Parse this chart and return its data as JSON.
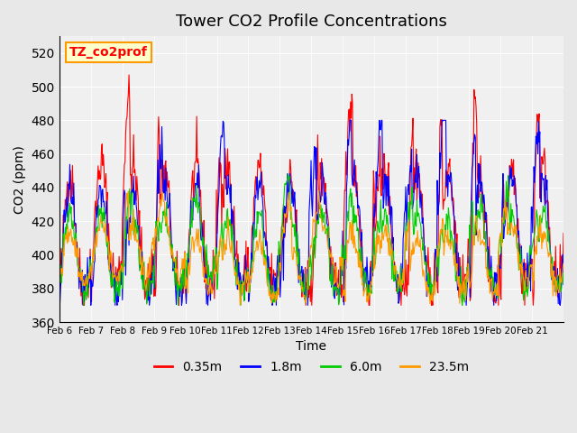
{
  "title": "Tower CO2 Profile Concentrations",
  "xlabel": "Time",
  "ylabel": "CO2 (ppm)",
  "ylim": [
    360,
    530
  ],
  "yticks": [
    360,
    380,
    400,
    420,
    440,
    460,
    480,
    500,
    520
  ],
  "xtick_labels": [
    "Feb 6",
    "Feb 7",
    "Feb 8",
    "Feb 9",
    "Feb 10",
    "Feb 11",
    "Feb 12",
    "Feb 13",
    "Feb 14",
    "Feb 15",
    "Feb 16",
    "Feb 17",
    "Feb 18",
    "Feb 19",
    "Feb 20",
    "Feb 21"
  ],
  "legend_labels": [
    "0.35m",
    "1.8m",
    "6.0m",
    "23.5m"
  ],
  "colors": [
    "#ff0000",
    "#0000ff",
    "#00cc00",
    "#ff9900"
  ],
  "annotation_text": "TZ_co2prof",
  "annotation_facecolor": "#ffffcc",
  "annotation_edgecolor": "#ff9900",
  "annotation_textcolor": "#ff0000",
  "bg_color": "#e8e8e8",
  "plot_bg_color": "#f0f0f0",
  "n_days": 16,
  "pts_per_day": 48,
  "seed": 42
}
